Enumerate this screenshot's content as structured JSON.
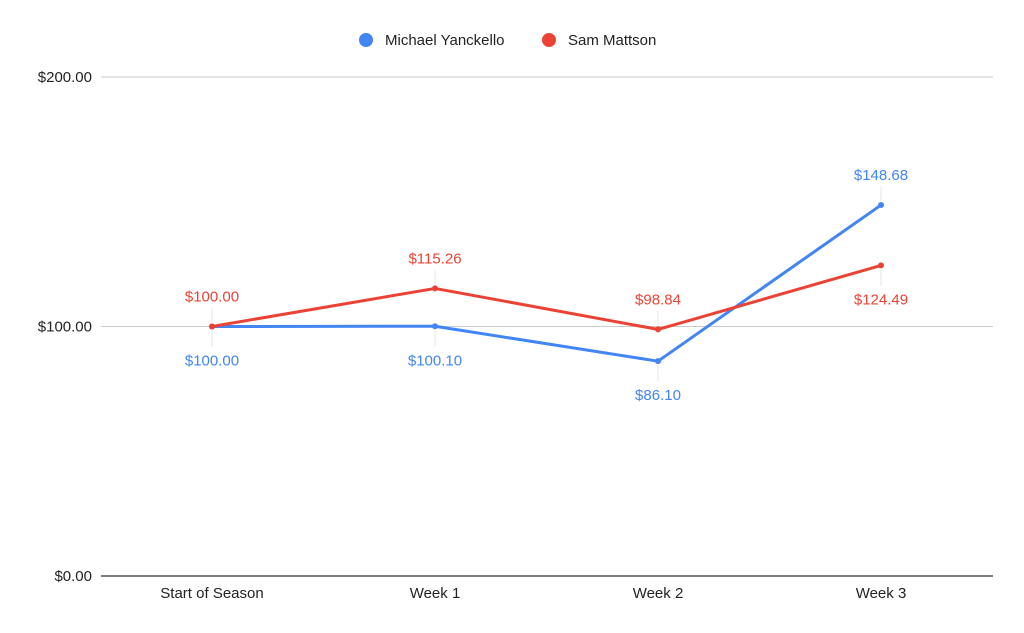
{
  "chart_data": {
    "type": "line",
    "title": "",
    "xlabel": "",
    "ylabel": "",
    "categories": [
      "Start of Season",
      "Week 1",
      "Week 2",
      "Week 3"
    ],
    "ylim": [
      0,
      200
    ],
    "y_ticks": [
      0,
      100,
      200
    ],
    "y_tick_labels": [
      "$0.00",
      "$100.00",
      "$200.00"
    ],
    "grid": true,
    "legend_position": "top-center",
    "series": [
      {
        "name": "Michael Yanckello",
        "color": "#4285f4",
        "values": [
          100.0,
          100.1,
          86.1,
          148.68
        ],
        "labels": [
          "$100.00",
          "$100.10",
          "$86.10",
          "$148.68"
        ]
      },
      {
        "name": "Sam Mattson",
        "color": "#ea4335",
        "values": [
          100.0,
          115.26,
          98.84,
          124.49
        ],
        "labels": [
          "$100.00",
          "$115.26",
          "$98.84",
          "$124.49"
        ]
      }
    ]
  }
}
